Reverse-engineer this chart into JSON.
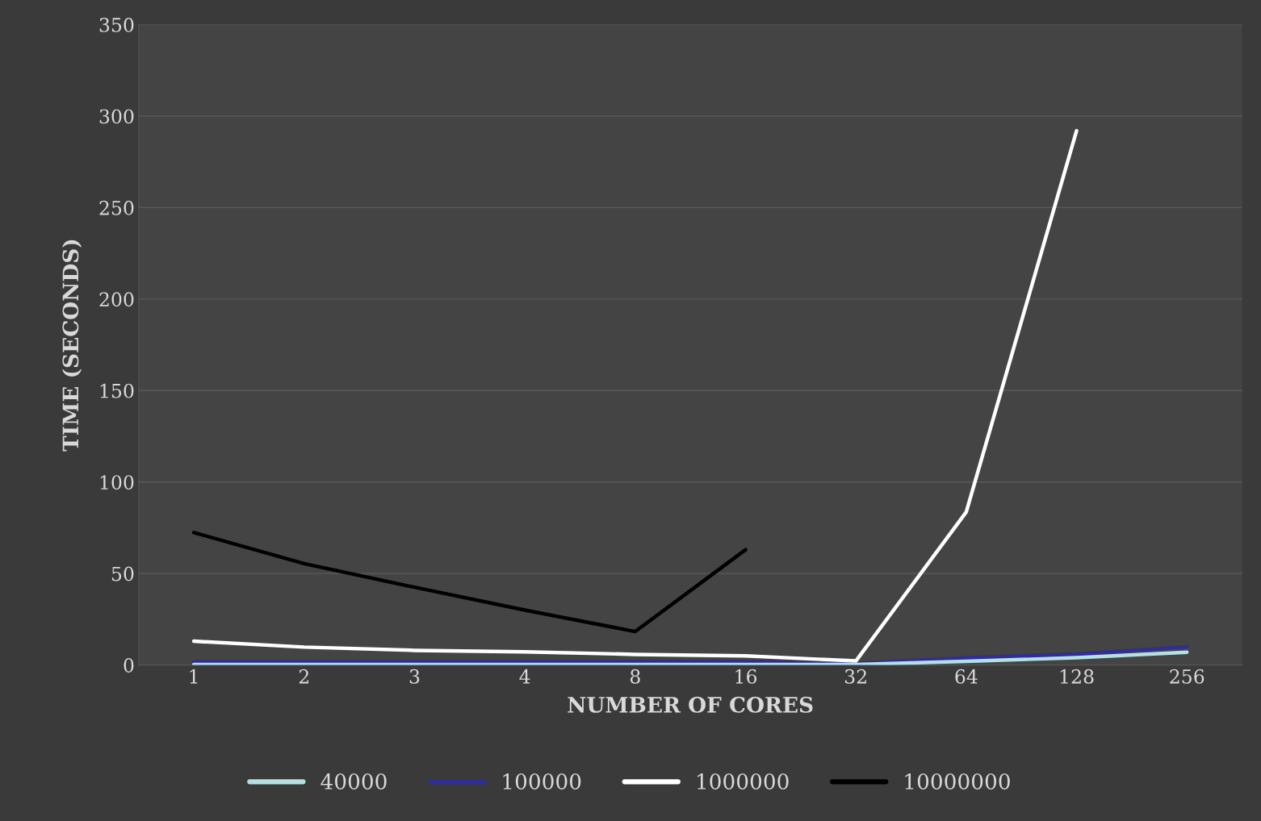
{
  "chart_data": {
    "type": "line",
    "xlabel": "NUMBER OF CORES",
    "ylabel": "TIME (SECONDS)",
    "categories": [
      "1",
      "2",
      "3",
      "4",
      "8",
      "16",
      "32",
      "64",
      "128",
      "256"
    ],
    "series": [
      {
        "name": "40000",
        "color": "#b4e0e4",
        "values": [
          0.3,
          0.3,
          0.3,
          0.3,
          0.3,
          0.3,
          0.3,
          2,
          4,
          7
        ]
      },
      {
        "name": "100000",
        "color": "#2e2e96",
        "values": [
          1.8,
          1.8,
          1.8,
          1.8,
          1.8,
          1.8,
          0.8,
          4,
          6,
          10
        ]
      },
      {
        "name": "1000000",
        "color": "#ffffff",
        "values": [
          13,
          9.8,
          8,
          7.2,
          5.8,
          5,
          2.2,
          83.6,
          292,
          null
        ]
      },
      {
        "name": "10000000",
        "color": "#000000",
        "values": [
          72.4,
          55.4,
          42.5,
          30,
          18.3,
          63,
          null,
          null,
          null,
          null
        ]
      }
    ],
    "ylim": [
      0,
      350
    ],
    "yticks": [
      0,
      50,
      100,
      150,
      200,
      250,
      300,
      350
    ],
    "grid": "y",
    "legend": "bottom",
    "marker": "none",
    "line_style": "solid"
  }
}
